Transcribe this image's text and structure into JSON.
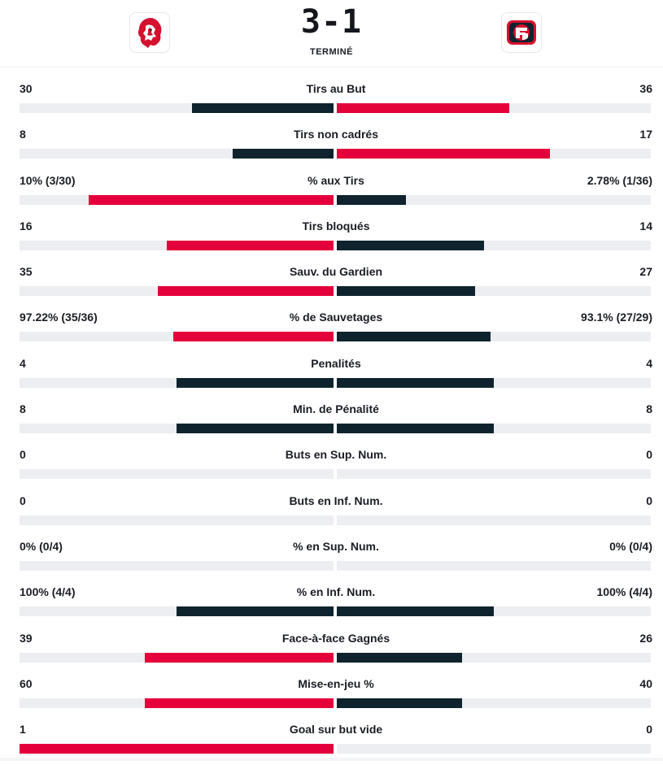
{
  "match": {
    "score": "3-1",
    "status": "TERMINÉ",
    "home_logo": "lion-icon",
    "away_logo": "fg-crest-icon"
  },
  "colors": {
    "red": "#e4003a",
    "dark": "#0e232d",
    "track": "#eceef1"
  },
  "stats": [
    {
      "name": "Tirs au But",
      "home": "30",
      "away": "36",
      "home_share": 0.45,
      "away_share": 0.55,
      "home_color": "dark",
      "away_color": "red"
    },
    {
      "name": "Tirs non cadrés",
      "home": "8",
      "away": "17",
      "home_share": 0.32,
      "away_share": 0.68,
      "home_color": "dark",
      "away_color": "red"
    },
    {
      "name": "% aux Tirs",
      "home": "10% (3/30)",
      "away": "2.78% (1/36)",
      "home_share": 0.78,
      "away_share": 0.22,
      "home_color": "red",
      "away_color": "dark"
    },
    {
      "name": "Tirs bloqués",
      "home": "16",
      "away": "14",
      "home_share": 0.53,
      "away_share": 0.47,
      "home_color": "red",
      "away_color": "dark"
    },
    {
      "name": "Sauv. du Gardien",
      "home": "35",
      "away": "27",
      "home_share": 0.56,
      "away_share": 0.44,
      "home_color": "red",
      "away_color": "dark"
    },
    {
      "name": "% de Sauvetages",
      "home": "97.22% (35/36)",
      "away": "93.1% (27/29)",
      "home_share": 0.51,
      "away_share": 0.49,
      "home_color": "red",
      "away_color": "dark"
    },
    {
      "name": "Penalités",
      "home": "4",
      "away": "4",
      "home_share": 0.5,
      "away_share": 0.5,
      "home_color": "dark",
      "away_color": "dark"
    },
    {
      "name": "Min. de Pénalité",
      "home": "8",
      "away": "8",
      "home_share": 0.5,
      "away_share": 0.5,
      "home_color": "dark",
      "away_color": "dark"
    },
    {
      "name": "Buts en Sup. Num.",
      "home": "0",
      "away": "0",
      "home_share": 0,
      "away_share": 0,
      "home_color": "dark",
      "away_color": "dark"
    },
    {
      "name": "Buts en Inf. Num.",
      "home": "0",
      "away": "0",
      "home_share": 0,
      "away_share": 0,
      "home_color": "dark",
      "away_color": "dark"
    },
    {
      "name": "% en Sup. Num.",
      "home": "0% (0/4)",
      "away": "0% (0/4)",
      "home_share": 0,
      "away_share": 0,
      "home_color": "dark",
      "away_color": "dark"
    },
    {
      "name": "% en Inf. Num.",
      "home": "100% (4/4)",
      "away": "100% (4/4)",
      "home_share": 0.5,
      "away_share": 0.5,
      "home_color": "dark",
      "away_color": "dark"
    },
    {
      "name": "Face-à-face Gagnés",
      "home": "39",
      "away": "26",
      "home_share": 0.6,
      "away_share": 0.4,
      "home_color": "red",
      "away_color": "dark"
    },
    {
      "name": "Mise-en-jeu %",
      "home": "60",
      "away": "40",
      "home_share": 0.6,
      "away_share": 0.4,
      "home_color": "red",
      "away_color": "dark"
    },
    {
      "name": "Goal sur but vide",
      "home": "1",
      "away": "0",
      "home_share": 1.0,
      "away_share": 0,
      "home_color": "red",
      "away_color": "dark"
    }
  ]
}
